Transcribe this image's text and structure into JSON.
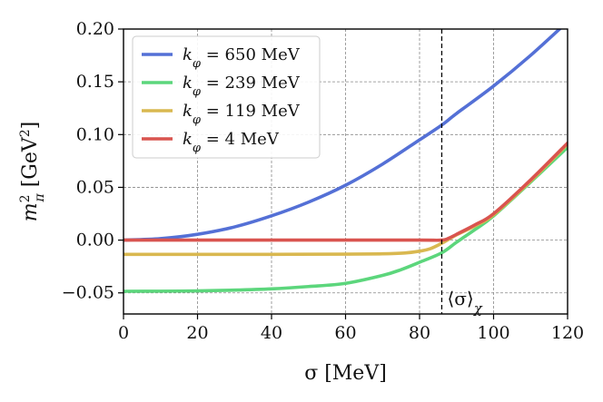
{
  "chart_data": {
    "type": "line",
    "title": "",
    "xlabel": "σ [MeV]",
    "ylabel": "m²π [GeV²]",
    "ylabel_parts": {
      "symbol": "m",
      "sup": "2",
      "sub": "π",
      "unit_open": " [GeV",
      "unit_sup": "2",
      "unit_close": "]"
    },
    "xlim": [
      0,
      120
    ],
    "ylim": [
      -0.07,
      0.2
    ],
    "xticks": [
      0,
      20,
      40,
      60,
      80,
      100,
      120
    ],
    "yticks": [
      -0.05,
      0.0,
      0.05,
      0.1,
      0.15,
      0.2
    ],
    "xtick_labels": [
      "0",
      "20",
      "40",
      "60",
      "80",
      "100",
      "120"
    ],
    "ytick_labels": [
      "−0.05",
      "0.00",
      "0.05",
      "0.10",
      "0.15",
      "0.20"
    ],
    "grid": true,
    "legend_position": "top-left",
    "vline": {
      "x": 86,
      "label": "⟨σ⟩χ",
      "label_main": "⟨σ⟩",
      "label_sub": "χ"
    },
    "series": [
      {
        "name": "kφ = 650 MeV",
        "label_var": "k",
        "label_sub": "φ",
        "label_rest": " = 650 MeV",
        "color": "#5470d6",
        "x": [
          0,
          10,
          20,
          30,
          40,
          50,
          60,
          70,
          80,
          86,
          90,
          100,
          110,
          120
        ],
        "y": [
          0.0,
          0.0014,
          0.0055,
          0.0125,
          0.023,
          0.036,
          0.052,
          0.072,
          0.095,
          0.109,
          0.12,
          0.146,
          0.175,
          0.207
        ]
      },
      {
        "name": "kφ = 239 MeV",
        "label_var": "k",
        "label_sub": "φ",
        "label_rest": " = 239 MeV",
        "color": "#5cd67c",
        "x": [
          0,
          10,
          20,
          30,
          40,
          50,
          60,
          70,
          75,
          80,
          86,
          90,
          95,
          100,
          110,
          120
        ],
        "y": [
          -0.0485,
          -0.0484,
          -0.0481,
          -0.0474,
          -0.0462,
          -0.044,
          -0.041,
          -0.0335,
          -0.028,
          -0.021,
          -0.012,
          -0.002,
          0.01,
          0.023,
          0.055,
          0.088
        ]
      },
      {
        "name": "kφ = 119 MeV",
        "label_var": "k",
        "label_sub": "φ",
        "label_rest": " = 119 MeV",
        "color": "#d9b850",
        "x": [
          0,
          20,
          40,
          60,
          70,
          76,
          80,
          83,
          86,
          88,
          90,
          95,
          100,
          110,
          120
        ],
        "y": [
          -0.0135,
          -0.0135,
          -0.0135,
          -0.0133,
          -0.013,
          -0.0122,
          -0.0105,
          -0.008,
          -0.003,
          0.001,
          0.005,
          0.0135,
          0.024,
          0.056,
          0.091
        ]
      },
      {
        "name": "kφ = 4 MeV",
        "label_var": "k",
        "label_sub": "φ",
        "label_rest": " = 4 MeV",
        "color": "#d9544f",
        "x": [
          0,
          20,
          40,
          60,
          80,
          86,
          88,
          90,
          95,
          100,
          110,
          120
        ],
        "y": [
          0.0,
          0.0,
          0.0,
          0.0,
          0.0,
          0.0,
          0.002,
          0.0055,
          0.0145,
          0.025,
          0.057,
          0.092
        ]
      }
    ]
  }
}
